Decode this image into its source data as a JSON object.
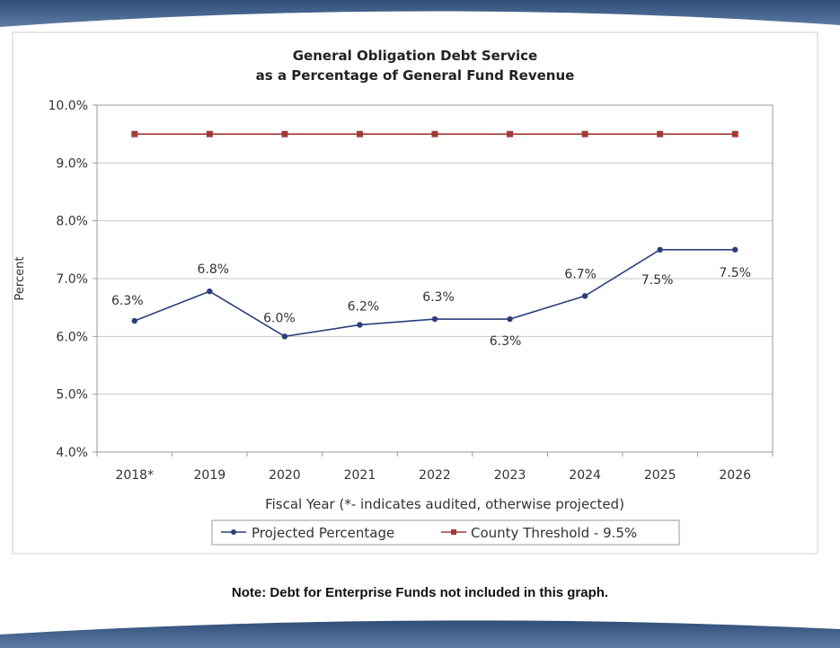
{
  "colors": {
    "banner": "#3d5b86",
    "projected": "#2b3f7a",
    "threshold": "#a33a36",
    "grid": "#c8c8c8"
  },
  "chart_data": {
    "type": "line",
    "title": "General Obligation Debt Service",
    "subtitle": "as a Percentage of General Fund Revenue",
    "xlabel": "Fiscal Year (*- indicates audited, otherwise projected)",
    "ylabel": "Percent",
    "categories": [
      "2018*",
      "2019",
      "2020",
      "2021",
      "2022",
      "2023",
      "2024",
      "2025",
      "2026"
    ],
    "ylim": [
      4.0,
      10.0
    ],
    "yticks": [
      "4.0%",
      "5.0%",
      "6.0%",
      "7.0%",
      "8.0%",
      "9.0%",
      "10.0%"
    ],
    "grid": true,
    "legend_position": "bottom",
    "series": [
      {
        "name": "Projected Percentage",
        "values": [
          6.27,
          6.78,
          6.0,
          6.2,
          6.3,
          6.3,
          6.7,
          7.5,
          7.5
        ],
        "labels": [
          "6.3%",
          "6.8%",
          "6.0%",
          "6.2%",
          "6.3%",
          "6.3%",
          "6.7%",
          "7.5%",
          "7.5%"
        ],
        "marker": "circle"
      },
      {
        "name": "County Threshold - 9.5%",
        "values": [
          9.5,
          9.5,
          9.5,
          9.5,
          9.5,
          9.5,
          9.5,
          9.5,
          9.5
        ],
        "marker": "square"
      }
    ]
  },
  "note": "Note: Debt for Enterprise Funds not included in this graph."
}
